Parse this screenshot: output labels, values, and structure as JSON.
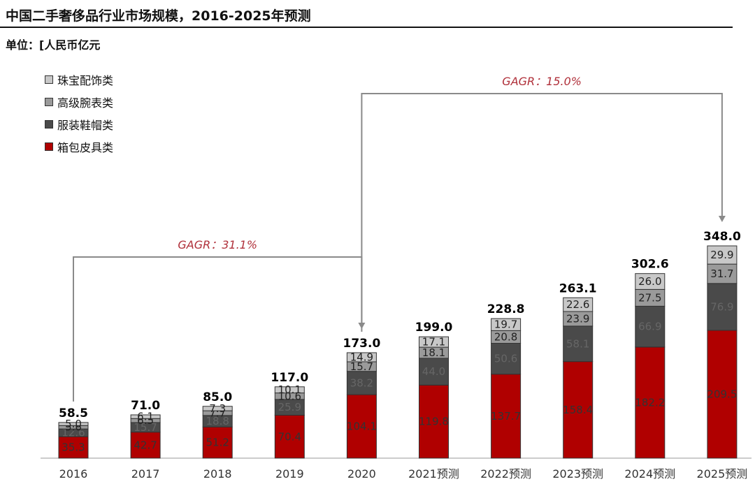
{
  "title": "中国二手奢侈品行业市场规模，2016-2025年预测",
  "unit": "单位：[人民币亿元",
  "colors": {
    "jewelry": "#c8c8c8",
    "watches": "#9a9a9a",
    "apparel": "#4a4a4a",
    "bags": "#b00000"
  },
  "chart_data": {
    "type": "bar",
    "stacked": true,
    "categories": [
      "2016",
      "2017",
      "2018",
      "2019",
      "2020",
      "2021预测",
      "2022预测",
      "2023预测",
      "2024预测",
      "2025预测"
    ],
    "series": [
      {
        "name": "箱包皮具类",
        "values": [
          35.3,
          42.7,
          51.2,
          70.4,
          104.1,
          119.8,
          137.7,
          158.4,
          182.2,
          209.5
        ]
      },
      {
        "name": "服装鞋帽类",
        "values": [
          12.6,
          15.7,
          18.8,
          25.9,
          38.2,
          44.0,
          50.6,
          58.1,
          66.9,
          76.9
        ]
      },
      {
        "name": "高级腕表类",
        "values": [
          5.6,
          6.5,
          7.7,
          10.6,
          15.7,
          18.1,
          20.8,
          23.9,
          27.5,
          31.7
        ]
      },
      {
        "name": "珠宝配饰类",
        "values": [
          5.0,
          6.1,
          7.3,
          10.1,
          14.9,
          17.1,
          19.7,
          22.6,
          26.0,
          29.9
        ]
      }
    ],
    "totals": [
      "58.5",
      "71.0",
      "85.0",
      "117.0",
      "173.0",
      "199.0",
      "228.8",
      "263.1",
      "302.6",
      "348.0"
    ],
    "segment_labels": [
      [
        "35.3",
        "12.6",
        "5.6",
        "5.0"
      ],
      [
        "42.7",
        "15.7",
        "6.5",
        "6.1"
      ],
      [
        "51.2",
        "18.8",
        "7.7",
        "7.3"
      ],
      [
        "70.4",
        "25.9",
        "10.6",
        "10.1"
      ],
      [
        "104.1",
        "38.2",
        "15.7",
        "14.9"
      ],
      [
        "119.8",
        "44.0",
        "18.1",
        "17.1"
      ],
      [
        "137.7",
        "50.6",
        "20.8",
        "19.7"
      ],
      [
        "158.4",
        "58.1",
        "23.9",
        "22.6"
      ],
      [
        "182.2",
        "66.9",
        "27.5",
        "26.0"
      ],
      [
        "209.5",
        "76.9",
        "31.7",
        "29.9"
      ]
    ],
    "legend_order": [
      "珠宝配饰类",
      "高级腕表类",
      "服装鞋帽类",
      "箱包皮具类"
    ],
    "annotations": [
      {
        "text": "GAGR：31.1%",
        "from": "2016",
        "to": "2020"
      },
      {
        "text": "GAGR：15.0%",
        "from": "2020",
        "to": "2025预测"
      }
    ],
    "ylim": [
      0,
      348
    ]
  }
}
